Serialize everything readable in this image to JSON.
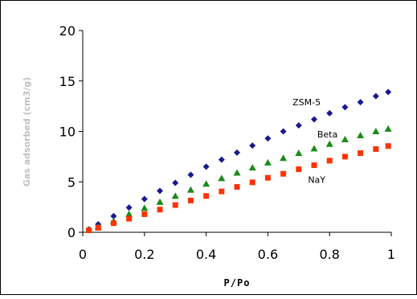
{
  "chart_data": {
    "type": "scatter",
    "title": "",
    "xlabel": "P/Po",
    "ylabel": "Gas adsorbed (cm3/g)",
    "xlim": [
      0,
      1
    ],
    "ylim": [
      0,
      20
    ],
    "xticks": [
      0,
      0.2,
      0.4,
      0.6,
      0.8,
      1
    ],
    "yticks": [
      0,
      5,
      10,
      15,
      20
    ],
    "xtick_labels": [
      "0",
      "0.2",
      "0.4",
      "0.6",
      "0.8",
      "1"
    ],
    "ytick_labels": [
      "0",
      "5",
      "10",
      "15",
      "20"
    ],
    "grid": false,
    "legend": "none",
    "series": [
      {
        "name": "ZSM-5",
        "marker": "diamond",
        "color": "#1a1a8c",
        "points": [
          [
            0.02,
            0.3
          ],
          [
            0.05,
            0.8
          ],
          [
            0.1,
            1.6
          ],
          [
            0.15,
            2.45
          ],
          [
            0.2,
            3.3
          ],
          [
            0.25,
            4.1
          ],
          [
            0.3,
            4.9
          ],
          [
            0.35,
            5.7
          ],
          [
            0.4,
            6.5
          ],
          [
            0.45,
            7.2
          ],
          [
            0.5,
            7.9
          ],
          [
            0.55,
            8.6
          ],
          [
            0.6,
            9.3
          ],
          [
            0.65,
            10.0
          ],
          [
            0.7,
            10.6
          ],
          [
            0.75,
            11.2
          ],
          [
            0.8,
            11.8
          ],
          [
            0.85,
            12.4
          ],
          [
            0.9,
            12.9
          ],
          [
            0.95,
            13.5
          ],
          [
            0.99,
            13.9
          ]
        ]
      },
      {
        "name": "Beta",
        "marker": "triangle",
        "color": "#1a8a1a",
        "points": [
          [
            0.02,
            0.25
          ],
          [
            0.05,
            0.55
          ],
          [
            0.1,
            1.1
          ],
          [
            0.15,
            1.8
          ],
          [
            0.2,
            2.4
          ],
          [
            0.25,
            3.0
          ],
          [
            0.3,
            3.6
          ],
          [
            0.35,
            4.2
          ],
          [
            0.4,
            4.8
          ],
          [
            0.45,
            5.35
          ],
          [
            0.5,
            5.9
          ],
          [
            0.55,
            6.4
          ],
          [
            0.6,
            6.9
          ],
          [
            0.65,
            7.35
          ],
          [
            0.7,
            7.85
          ],
          [
            0.75,
            8.3
          ],
          [
            0.8,
            8.75
          ],
          [
            0.85,
            9.2
          ],
          [
            0.9,
            9.6
          ],
          [
            0.95,
            10.0
          ],
          [
            0.99,
            10.25
          ]
        ]
      },
      {
        "name": "NaY",
        "marker": "square",
        "color": "#ff3300",
        "points": [
          [
            0.02,
            0.2
          ],
          [
            0.05,
            0.45
          ],
          [
            0.1,
            0.9
          ],
          [
            0.15,
            1.35
          ],
          [
            0.2,
            1.8
          ],
          [
            0.25,
            2.25
          ],
          [
            0.3,
            2.7
          ],
          [
            0.35,
            3.15
          ],
          [
            0.4,
            3.6
          ],
          [
            0.45,
            4.05
          ],
          [
            0.5,
            4.5
          ],
          [
            0.55,
            4.95
          ],
          [
            0.6,
            5.4
          ],
          [
            0.65,
            5.8
          ],
          [
            0.7,
            6.25
          ],
          [
            0.75,
            6.65
          ],
          [
            0.8,
            7.1
          ],
          [
            0.85,
            7.5
          ],
          [
            0.9,
            7.85
          ],
          [
            0.95,
            8.25
          ],
          [
            0.99,
            8.55
          ]
        ]
      }
    ]
  }
}
